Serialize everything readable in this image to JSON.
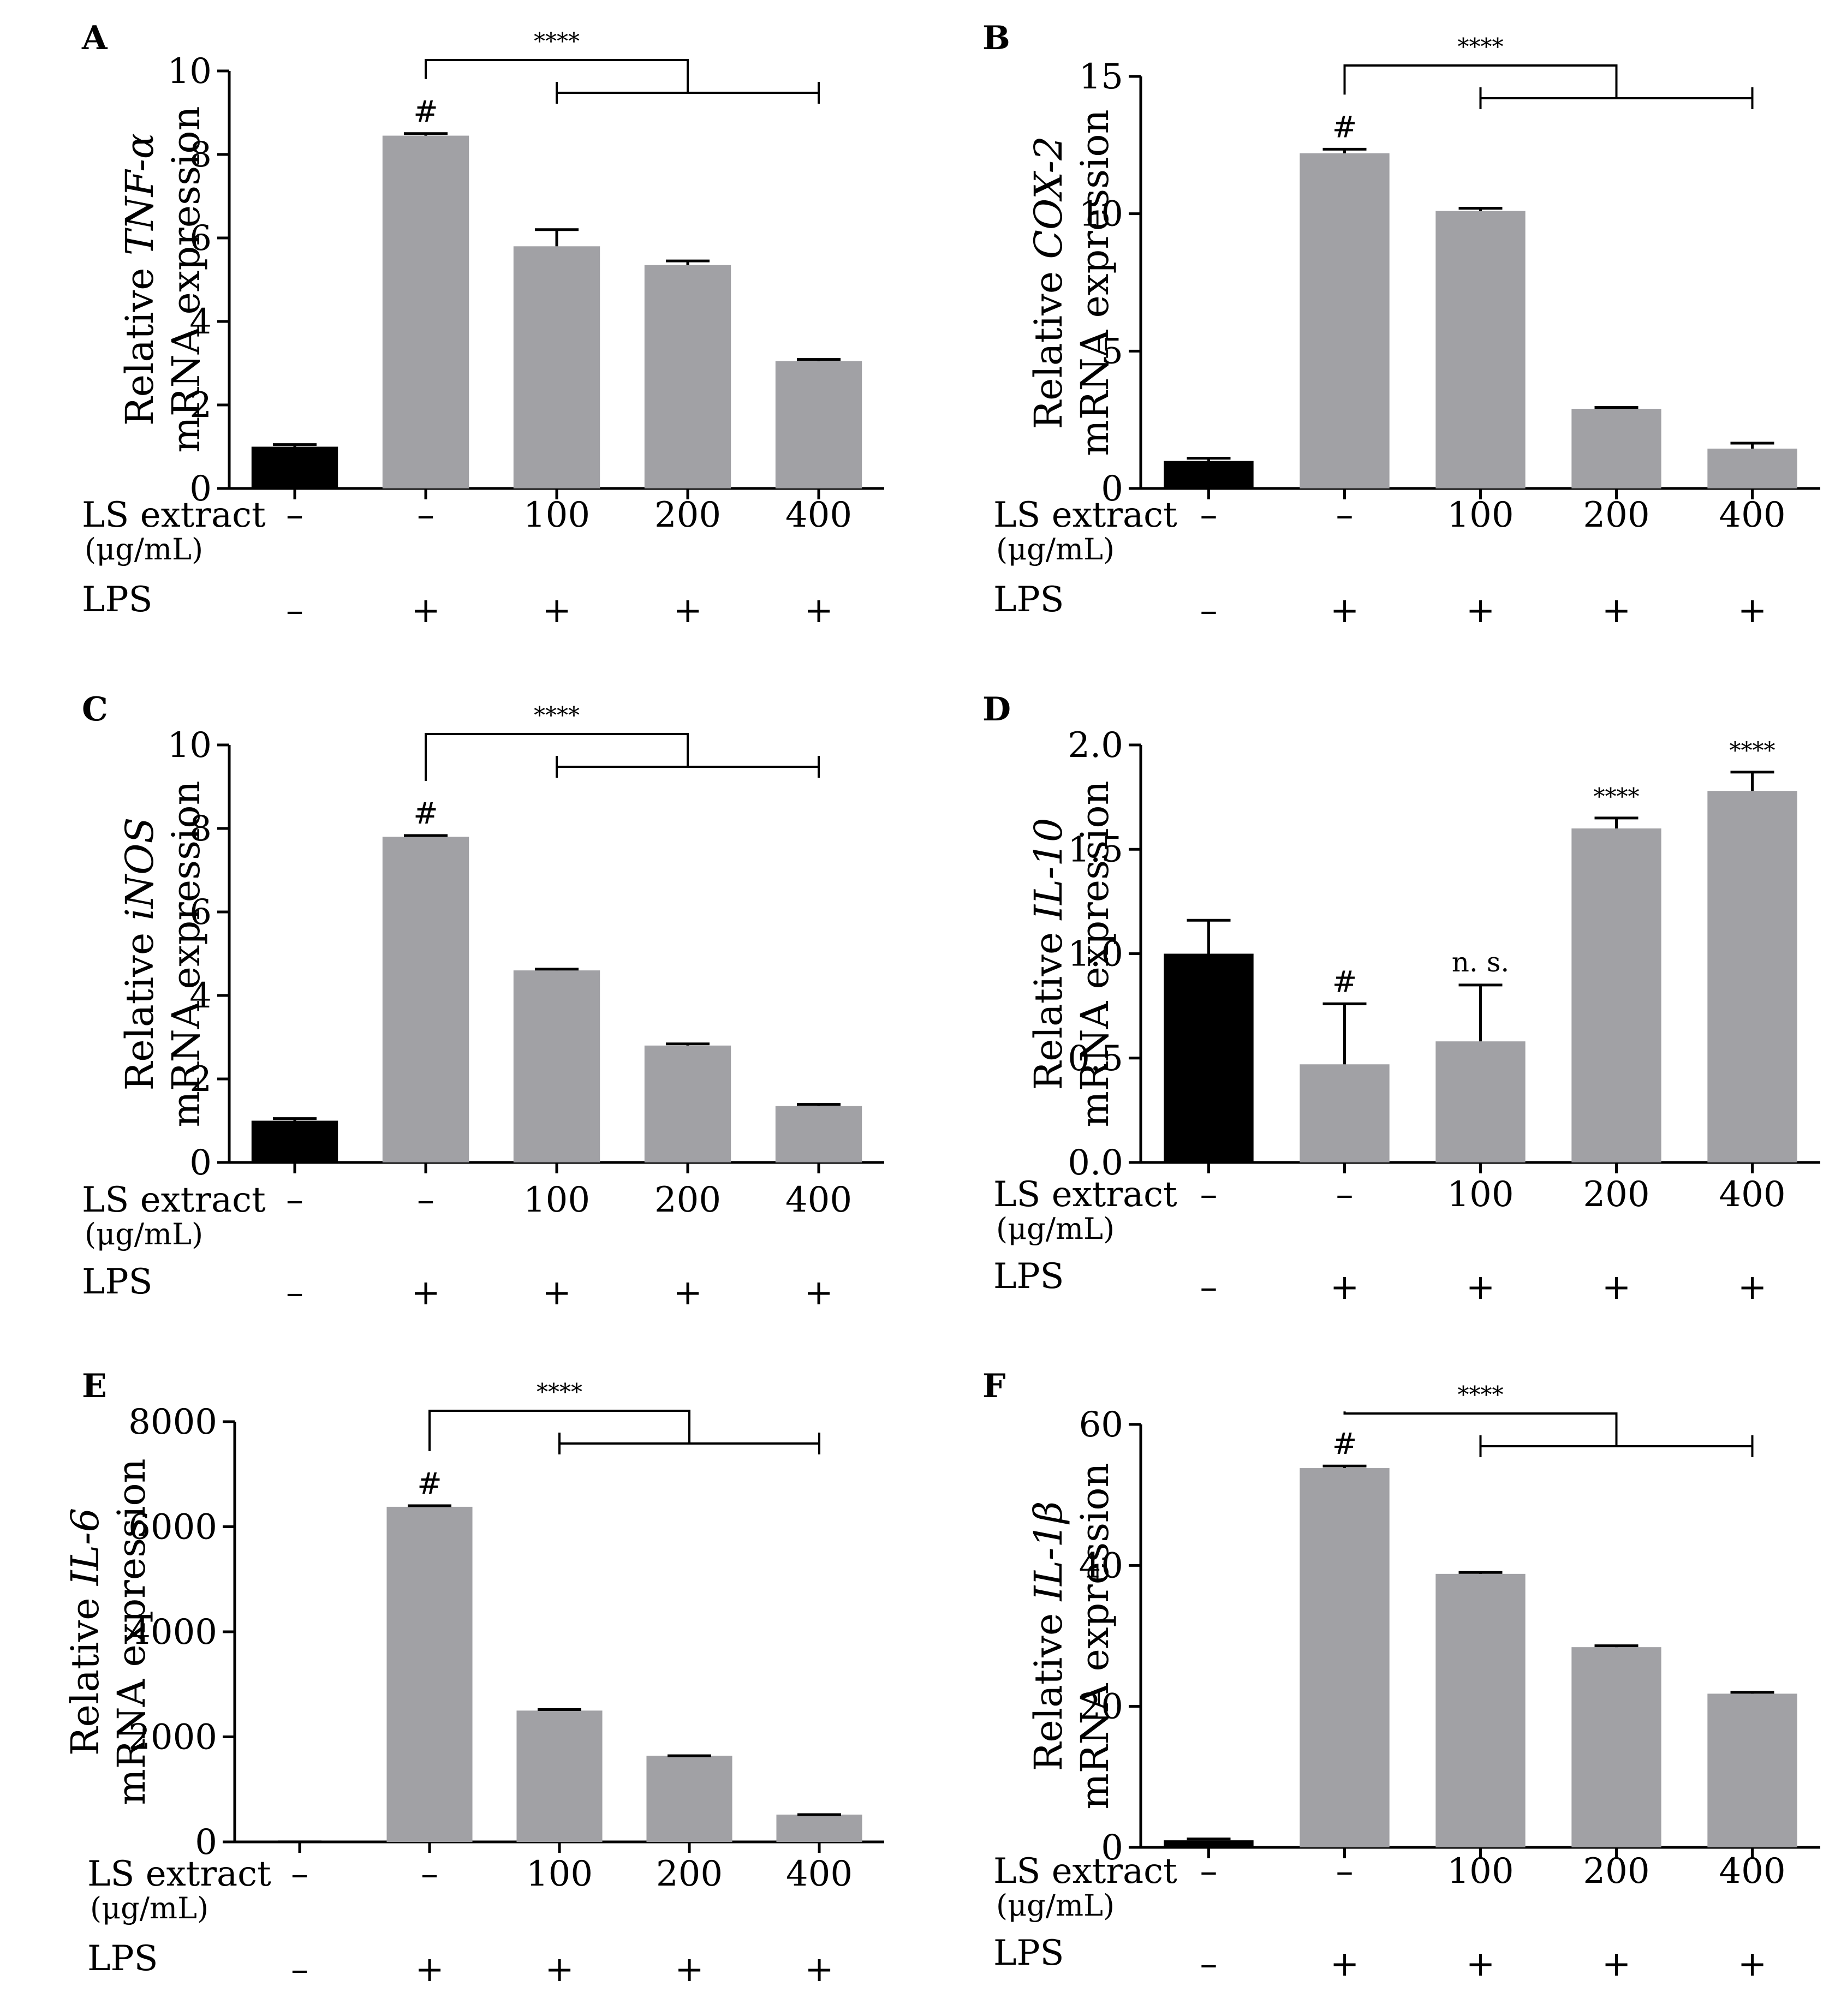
{
  "figure": {
    "panels": [
      {
        "letter": "A",
        "ylabel_pre": "Relative ",
        "gene": "TNF-α",
        "ylabel_post": " mRNA expression",
        "ylabel_line1_pre": "Relative ",
        "ylabel_line2": "mRNA expression",
        "ymax": 10,
        "yticks": [
          0,
          2,
          4,
          6,
          8,
          10
        ],
        "tick_decimals": 0,
        "values": [
          1.0,
          8.45,
          5.8,
          5.35,
          3.05
        ],
        "errors": [
          0.05,
          0.05,
          0.4,
          0.1,
          0.04
        ],
        "bar_colors": [
          "#000000",
          "#a1a1a5",
          "#a1a1a5",
          "#a1a1a5",
          "#a1a1a5"
        ],
        "marks": [
          "",
          "#",
          "",
          "",
          ""
        ],
        "bracket": {
          "stars": "****"
        }
      },
      {
        "letter": "B",
        "ylabel_line1_pre": "Relative ",
        "gene": "COX-2",
        "ylabel_line2": "mRNA expression",
        "ymax": 15,
        "yticks": [
          0,
          5,
          10,
          15
        ],
        "tick_decimals": 0,
        "values": [
          1.0,
          12.2,
          10.1,
          2.9,
          1.45
        ],
        "errors": [
          0.1,
          0.15,
          0.1,
          0.05,
          0.2
        ],
        "bar_colors": [
          "#000000",
          "#a1a1a5",
          "#a1a1a5",
          "#a1a1a5",
          "#a1a1a5"
        ],
        "marks": [
          "",
          "#",
          "",
          "",
          ""
        ],
        "bracket": {
          "stars": "****"
        }
      },
      {
        "letter": "C",
        "ylabel_line1_pre": "Relative ",
        "gene": "iNOS",
        "ylabel_line2": "mRNA expression",
        "ymax": 10,
        "yticks": [
          0,
          2,
          4,
          6,
          8,
          10
        ],
        "tick_decimals": 0,
        "values": [
          1.0,
          7.8,
          4.6,
          2.8,
          1.35
        ],
        "errors": [
          0.05,
          0.03,
          0.03,
          0.04,
          0.04
        ],
        "bar_colors": [
          "#000000",
          "#a1a1a5",
          "#a1a1a5",
          "#a1a1a5",
          "#a1a1a5"
        ],
        "marks": [
          "",
          "#",
          "",
          "",
          ""
        ],
        "bracket": {
          "stars": "****"
        }
      },
      {
        "letter": "D",
        "ylabel_line1_pre": "Relative ",
        "gene": "IL-10",
        "ylabel_line2": "mRNA expression",
        "ymax": 2.0,
        "yticks": [
          0.0,
          0.5,
          1.0,
          1.5,
          2.0
        ],
        "tick_decimals": 1,
        "values": [
          1.0,
          0.47,
          0.58,
          1.6,
          1.78
        ],
        "errors": [
          0.16,
          0.29,
          0.27,
          0.05,
          0.09
        ],
        "bar_colors": [
          "#000000",
          "#a1a1a5",
          "#a1a1a5",
          "#a1a1a5",
          "#a1a1a5"
        ],
        "marks": [
          "",
          "#",
          "n. s.",
          "****",
          "****"
        ],
        "bracket": null
      },
      {
        "letter": "E",
        "ylabel_line1_pre": "Relative ",
        "gene": "IL-6",
        "ylabel_line2": "mRNA expression",
        "ymax": 8000,
        "yticks": [
          0,
          2000,
          4000,
          6000,
          8000
        ],
        "tick_decimals": 0,
        "values": [
          1,
          6380,
          2500,
          1640,
          520
        ],
        "errors": [
          0,
          20,
          20,
          0,
          0
        ],
        "bar_colors": [
          "#000000",
          "#a1a1a5",
          "#a1a1a5",
          "#a1a1a5",
          "#a1a1a5"
        ],
        "marks": [
          "",
          "#",
          "",
          "",
          ""
        ],
        "bracket": {
          "stars": "****"
        }
      },
      {
        "letter": "F",
        "ylabel_line1_pre": "Relative ",
        "gene": "IL-1β",
        "ylabel_line2": "mRNA expression",
        "ymax": 60,
        "yticks": [
          0,
          20,
          40,
          60
        ],
        "tick_decimals": 0,
        "values": [
          1.0,
          53.8,
          38.8,
          28.4,
          21.8
        ],
        "errors": [
          0.2,
          0.3,
          0.2,
          0.2,
          0.2
        ],
        "bar_colors": [
          "#000000",
          "#a1a1a5",
          "#a1a1a5",
          "#a1a1a5",
          "#a1a1a5"
        ],
        "marks": [
          "",
          "#",
          "",
          "",
          ""
        ],
        "bracket": {
          "stars": "****"
        }
      }
    ],
    "rows": {
      "extract_label": "LS extract",
      "extract_unit": "(μg/mL)",
      "extract_values": [
        "–",
        "–",
        "100",
        "200",
        "400"
      ],
      "lps_label": "LPS",
      "lps_values": [
        "–",
        "+",
        "+",
        "+",
        "+"
      ]
    }
  },
  "chart_data": [
    {
      "type": "bar",
      "title": "A",
      "xlabel": "",
      "ylabel": "Relative TNF-α mRNA expression",
      "categories": [
        "LS – / LPS –",
        "LS – / LPS +",
        "LS 100 / LPS +",
        "LS 200 / LPS +",
        "LS 400 / LPS +"
      ],
      "values": [
        1.0,
        8.45,
        5.8,
        5.35,
        3.05
      ],
      "errors": [
        0.05,
        0.05,
        0.4,
        0.1,
        0.04
      ],
      "ylim": [
        0,
        10
      ],
      "annotations": [
        "#",
        "****"
      ]
    },
    {
      "type": "bar",
      "title": "B",
      "xlabel": "",
      "ylabel": "Relative COX-2 mRNA expression",
      "categories": [
        "LS – / LPS –",
        "LS – / LPS +",
        "LS 100 / LPS +",
        "LS 200 / LPS +",
        "LS 400 / LPS +"
      ],
      "values": [
        1.0,
        12.2,
        10.1,
        2.9,
        1.45
      ],
      "errors": [
        0.1,
        0.15,
        0.1,
        0.05,
        0.2
      ],
      "ylim": [
        0,
        15
      ],
      "annotations": [
        "#",
        "****"
      ]
    },
    {
      "type": "bar",
      "title": "C",
      "xlabel": "",
      "ylabel": "Relative iNOS mRNA expression",
      "categories": [
        "LS – / LPS –",
        "LS – / LPS +",
        "LS 100 / LPS +",
        "LS 200 / LPS +",
        "LS 400 / LPS +"
      ],
      "values": [
        1.0,
        7.8,
        4.6,
        2.8,
        1.35
      ],
      "errors": [
        0.05,
        0.03,
        0.03,
        0.04,
        0.04
      ],
      "ylim": [
        0,
        10
      ],
      "annotations": [
        "#",
        "****"
      ]
    },
    {
      "type": "bar",
      "title": "D",
      "xlabel": "",
      "ylabel": "Relative IL-10 mRNA expression",
      "categories": [
        "LS – / LPS –",
        "LS – / LPS +",
        "LS 100 / LPS +",
        "LS 200 / LPS +",
        "LS 400 / LPS +"
      ],
      "values": [
        1.0,
        0.47,
        0.58,
        1.6,
        1.78
      ],
      "errors": [
        0.16,
        0.29,
        0.27,
        0.05,
        0.09
      ],
      "ylim": [
        0,
        2.0
      ],
      "annotations": [
        "#",
        "n. s.",
        "****",
        "****"
      ]
    },
    {
      "type": "bar",
      "title": "E",
      "xlabel": "",
      "ylabel": "Relative IL-6 mRNA expression",
      "categories": [
        "LS – / LPS –",
        "LS – / LPS +",
        "LS 100 / LPS +",
        "LS 200 / LPS +",
        "LS 400 / LPS +"
      ],
      "values": [
        1,
        6380,
        2500,
        1640,
        520
      ],
      "errors": [
        0,
        20,
        20,
        0,
        0
      ],
      "ylim": [
        0,
        8000
      ],
      "annotations": [
        "#",
        "****"
      ]
    },
    {
      "type": "bar",
      "title": "F",
      "xlabel": "",
      "ylabel": "Relative IL-1β mRNA expression",
      "categories": [
        "LS – / LPS –",
        "LS – / LPS +",
        "LS 100 / LPS +",
        "LS 200 / LPS +",
        "LS 400 / LPS +"
      ],
      "values": [
        1.0,
        53.8,
        38.8,
        28.4,
        21.8
      ],
      "errors": [
        0.2,
        0.3,
        0.2,
        0.2,
        0.2
      ],
      "ylim": [
        0,
        60
      ],
      "annotations": [
        "#",
        "****"
      ]
    }
  ]
}
